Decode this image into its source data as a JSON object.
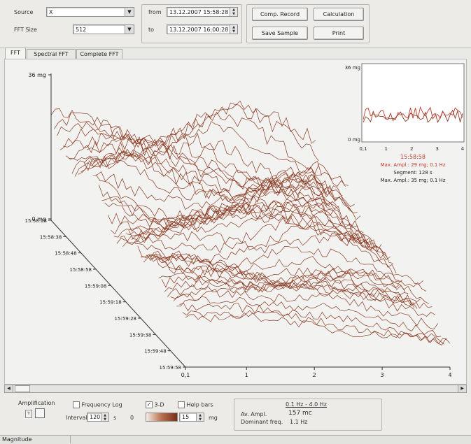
{
  "controls": {
    "source_label": "Source",
    "source_value": "X",
    "fft_size_label": "FFT Size",
    "fft_size_value": "512",
    "from_label": "from",
    "from_value": "13.12.2007 15:58:28",
    "to_label": "to",
    "to_value": "13.12.2007 16:00:28",
    "comp_record": "Comp. Record",
    "calculation": "Calculation",
    "save_sample": "Save Sample",
    "print": "Print"
  },
  "tabs": [
    "FFT",
    "Spectral FFT",
    "Complete FFT"
  ],
  "plot": {
    "z_top_label": "36 mg",
    "z_bottom_label": "0 mg",
    "time_labels": [
      "15:58:28",
      "15:58:38",
      "15:58:48",
      "15:58:58",
      "15:59:08",
      "15:59:18",
      "15:59:28",
      "15:59:38",
      "15:59:48",
      "15:59:58"
    ],
    "freq_ticks": [
      "0,1",
      "1",
      "2",
      "3",
      "4"
    ],
    "line_color": "#8b3a22"
  },
  "inset": {
    "top_label": "36 mg",
    "bottom_label": "0 mg",
    "ticks": [
      "0,1",
      "1",
      "2",
      "3",
      "4"
    ],
    "time": "15:58:58",
    "max_ampl_red": "Max. Ampl.: 29 mg; 0.1 Hz",
    "segment": "Segment: 128 s",
    "max_ampl": "Max. Ampl.: 35 mg; 0.1 Hz",
    "red_color": "#c0392b"
  },
  "bottom": {
    "amplification_label": "Amplification",
    "frequency_log": "Frequency Log",
    "interval_label": "Intervall",
    "interval_value": "120",
    "interval_unit": "s",
    "threed": "3-D",
    "help_bars": "Help bars",
    "color_min": "0",
    "color_max_value": "15",
    "color_unit": "mg",
    "range": "0.1 Hz - 4.0 Hz",
    "av_ampl_label": "Av. Ampl.",
    "av_ampl_value": "157 mc",
    "dominant_label": "Dominant freq.",
    "dominant_value": "1.1 Hz"
  },
  "status": {
    "text": "Magnitude"
  }
}
